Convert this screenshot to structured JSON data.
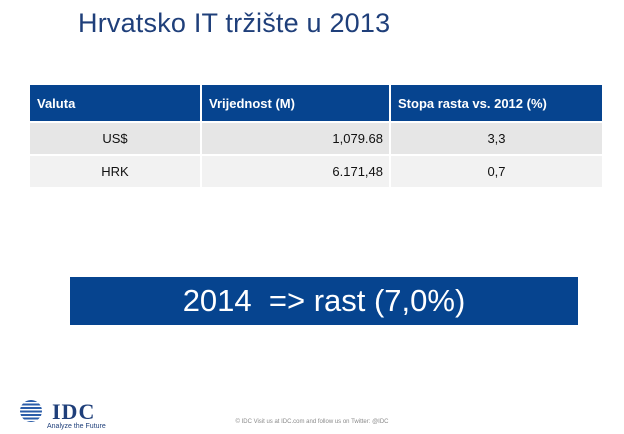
{
  "title": "Hrvatsko IT tržište u 2013",
  "table": {
    "headers": [
      "Valuta",
      "Vrijednost (M)",
      "Stopa rasta vs. 2012 (%)"
    ],
    "rows": [
      [
        "US$",
        "1,079.68",
        "3,3"
      ],
      [
        "HRK",
        "6.171,48",
        "0,7"
      ]
    ]
  },
  "banner": "2014  => rast (7,0%)",
  "logo": {
    "name": "IDC",
    "tagline": "Analyze the Future"
  },
  "footer": "© IDC   Visit us at IDC.com and follow us on Twitter: @IDC",
  "colors": {
    "primary": "#06448f",
    "title": "#1f3f7a",
    "row_bg": "#e6e6e6"
  }
}
